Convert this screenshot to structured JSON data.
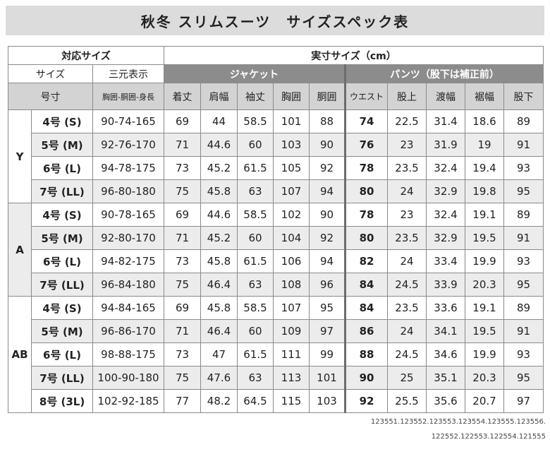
{
  "title": "秋冬 スリムスーツ　サイズスペック表",
  "header": {
    "taiou_size": "対応サイズ",
    "jissun_size": "実寸サイズ（cm）",
    "size_label": "サイズ",
    "sangen_label": "三元表示",
    "jacket_label": "ジャケット",
    "pants_label": "パンツ（股下は補正前）",
    "gousun_label": "号寸",
    "sangen_detail": "胸囲-胴囲-身長",
    "columns": [
      "着丈",
      "肩幅",
      "袖丈",
      "胸囲",
      "胴囲",
      "ウエスト",
      "股上",
      "渡幅",
      "裾幅",
      "股下"
    ]
  },
  "groups": [
    {
      "name": "Y",
      "rows": [
        {
          "size": "4号 (S)",
          "sangen": "90-74-165",
          "values": [
            "69",
            "44",
            "58.5",
            "101",
            "88",
            "74",
            "22.5",
            "31.4",
            "18.6",
            "89"
          ]
        },
        {
          "size": "5号 (M)",
          "sangen": "92-76-170",
          "values": [
            "71",
            "44.6",
            "60",
            "103",
            "90",
            "76",
            "23",
            "31.9",
            "19",
            "91"
          ]
        },
        {
          "size": "6号 (L)",
          "sangen": "94-78-175",
          "values": [
            "73",
            "45.2",
            "61.5",
            "105",
            "92",
            "78",
            "23.5",
            "32.4",
            "19.4",
            "93"
          ]
        },
        {
          "size": "7号 (LL)",
          "sangen": "96-80-180",
          "values": [
            "75",
            "45.8",
            "63",
            "107",
            "94",
            "80",
            "24",
            "32.9",
            "19.8",
            "95"
          ]
        }
      ]
    },
    {
      "name": "A",
      "rows": [
        {
          "size": "4号 (S)",
          "sangen": "90-78-165",
          "values": [
            "69",
            "44.6",
            "58.5",
            "102",
            "90",
            "78",
            "23",
            "32.4",
            "19.1",
            "89"
          ]
        },
        {
          "size": "5号 (M)",
          "sangen": "92-80-170",
          "values": [
            "71",
            "45.2",
            "60",
            "104",
            "92",
            "80",
            "23.5",
            "32.9",
            "19.5",
            "91"
          ]
        },
        {
          "size": "6号 (L)",
          "sangen": "94-82-175",
          "values": [
            "73",
            "45.8",
            "61.5",
            "106",
            "94",
            "82",
            "24",
            "33.4",
            "19.9",
            "93"
          ]
        },
        {
          "size": "7号 (LL)",
          "sangen": "96-84-180",
          "values": [
            "75",
            "46.4",
            "63",
            "108",
            "96",
            "84",
            "24.5",
            "33.9",
            "20.3",
            "95"
          ]
        }
      ]
    },
    {
      "name": "AB",
      "rows": [
        {
          "size": "4号 (S)",
          "sangen": "94-84-165",
          "values": [
            "69",
            "45.8",
            "58.5",
            "107",
            "95",
            "84",
            "23.5",
            "33.6",
            "19.1",
            "89"
          ]
        },
        {
          "size": "5号 (M)",
          "sangen": "96-86-170",
          "values": [
            "71",
            "46.4",
            "60",
            "109",
            "97",
            "86",
            "24",
            "34.1",
            "19.5",
            "91"
          ]
        },
        {
          "size": "6号 (L)",
          "sangen": "98-88-175",
          "values": [
            "73",
            "47",
            "61.5",
            "111",
            "99",
            "88",
            "24.5",
            "34.6",
            "19.9",
            "93"
          ]
        },
        {
          "size": "7号 (LL)",
          "sangen": "100-90-180",
          "values": [
            "75",
            "47.6",
            "63",
            "113",
            "101",
            "90",
            "25",
            "35.1",
            "20.3",
            "95"
          ]
        },
        {
          "size": "8号 (3L)",
          "sangen": "102-92-185",
          "values": [
            "77",
            "48.2",
            "64.5",
            "115",
            "103",
            "92",
            "25.5",
            "35.6",
            "20.7",
            "97"
          ]
        }
      ]
    }
  ],
  "footnotes": [
    "123551.123552.123553.123554.123555.123556.",
    "122552.122553.122554.121555"
  ]
}
